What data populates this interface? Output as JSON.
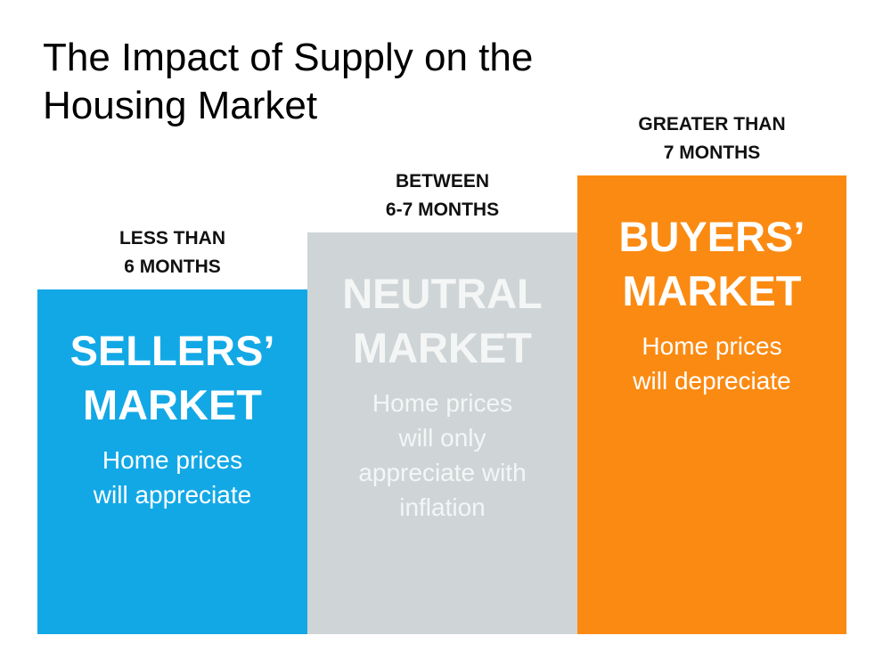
{
  "title": [
    "The Impact of Supply on the",
    "Housing Market"
  ],
  "columns": [
    {
      "supply": [
        "LESS THAN",
        "6 MONTHS"
      ],
      "market": [
        "SELLERS’",
        "MARKET"
      ],
      "description": [
        "Home prices",
        "will appreciate"
      ]
    },
    {
      "supply": [
        "BETWEEN",
        "6-7 MONTHS"
      ],
      "market": [
        "NEUTRAL",
        "MARKET"
      ],
      "description": [
        "Home prices",
        "will only",
        "appreciate with",
        "inflation"
      ]
    },
    {
      "supply": [
        "GREATER THAN",
        "7 MONTHS"
      ],
      "market": [
        "BUYERS’",
        "MARKET"
      ],
      "description": [
        "Home prices",
        "will depreciate"
      ]
    }
  ]
}
